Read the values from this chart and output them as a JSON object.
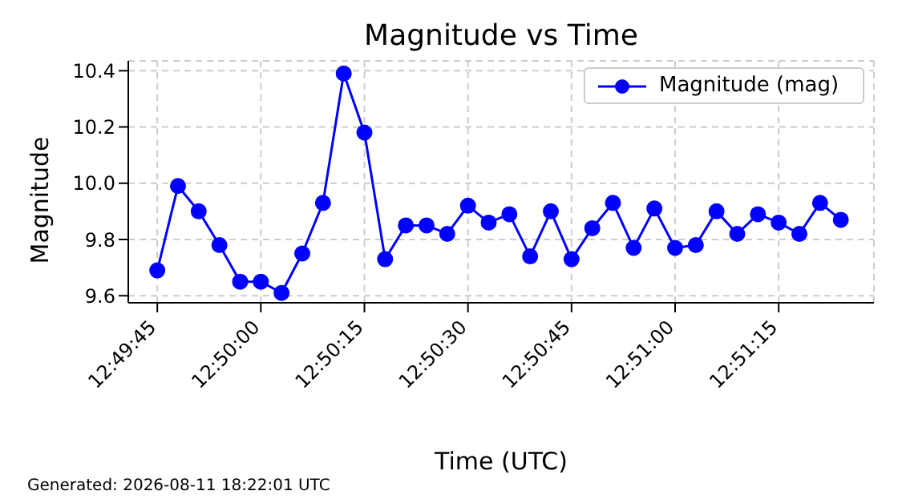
{
  "chart_data": {
    "type": "line",
    "title": "Magnitude vs Time",
    "xlabel": "Time (UTC)",
    "ylabel": "Magnitude",
    "annotations": [
      "Generated: 2026-08-11 18:22:01 UTC"
    ],
    "x": [
      12.829167,
      12.83,
      12.830833,
      12.831667,
      12.8325,
      12.833333,
      12.834167,
      12.835,
      12.835833,
      12.836667,
      12.8375,
      12.838333,
      12.839167,
      12.84,
      12.840833,
      12.841667,
      12.8425,
      12.843333,
      12.844167,
      12.845,
      12.845833,
      12.846667,
      12.8475,
      12.848333,
      12.849167,
      12.85,
      12.850833,
      12.851667,
      12.8525,
      12.853333,
      12.854167,
      12.855,
      12.855833,
      12.856667
    ],
    "series": [
      {
        "name": "Magnitude (mag)",
        "color": "#0000ff",
        "values": [
          9.69,
          9.99,
          9.9,
          9.78,
          9.65,
          9.65,
          9.61,
          9.75,
          9.93,
          10.39,
          10.18,
          9.73,
          9.85,
          9.85,
          9.82,
          9.92,
          9.86,
          9.89,
          9.74,
          9.9,
          9.73,
          9.84,
          9.93,
          9.77,
          9.91,
          9.77,
          9.78,
          9.9,
          9.82,
          9.89,
          9.86,
          9.82,
          9.93,
          9.87
        ]
      }
    ],
    "xlim": [
      12.828,
      12.858
    ],
    "xticks": [
      {
        "value": 12.829167,
        "label": "12:49:45"
      },
      {
        "value": 12.833333,
        "label": "12:50:00"
      },
      {
        "value": 12.8375,
        "label": "12:50:15"
      },
      {
        "value": 12.841667,
        "label": "12:50:30"
      },
      {
        "value": 12.845833,
        "label": "12:50:45"
      },
      {
        "value": 12.85,
        "label": "12:51:00"
      },
      {
        "value": 12.854167,
        "label": "12:51:15"
      }
    ],
    "ylim": [
      9.575,
      10.435
    ],
    "yticks": [
      9.6,
      9.8,
      {
        "value": 10,
        "label": "10.0"
      },
      10.2,
      10.4
    ],
    "grid": true,
    "legend": "top right",
    "marker": "circle",
    "line_style": "solid"
  }
}
